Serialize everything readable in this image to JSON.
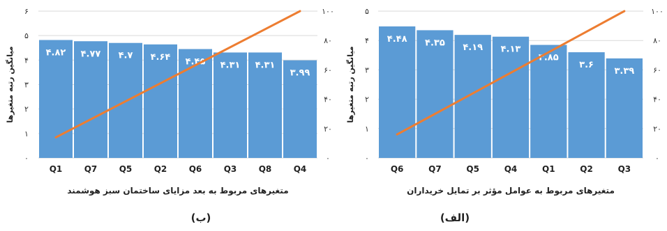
{
  "chart_data": [
    {
      "panel_label": "(ب)",
      "type": "bar",
      "categories": [
        "Q1",
        "Q7",
        "Q5",
        "Q2",
        "Q6",
        "Q3",
        "Q8",
        "Q4"
      ],
      "values": [
        4.82,
        4.77,
        4.7,
        4.64,
        4.45,
        4.31,
        4.31,
        3.99
      ],
      "value_labels": [
        "۴.۸۲",
        "۴.۷۷",
        "۴.۷",
        "۴.۶۴",
        "۴.۴۵",
        "۴.۳۱",
        "۴.۳۱",
        "۳.۹۹"
      ],
      "ylim": [
        0,
        6
      ],
      "y_ticks": [
        0,
        1,
        2,
        3,
        4,
        5,
        6
      ],
      "y_tick_labels": [
        "۰",
        "۱",
        "۲",
        "۳",
        "۴",
        "۵",
        "۶"
      ],
      "y2lim": [
        0,
        100
      ],
      "y2_ticks": [
        0,
        20,
        40,
        60,
        80,
        100
      ],
      "y2_tick_labels": [
        "۰",
        "۲۰",
        "۴۰",
        "۶۰",
        "۸۰",
        "۱۰۰"
      ],
      "line": [
        14,
        100
      ],
      "xlabel": "متغیرهای مربوط به بعد مزایای ساختمان سبز هوشمند",
      "ylabel": "میانگین رتبه متغیرها",
      "bar_color": "#5b9bd5",
      "line_color": "#ed7d31"
    },
    {
      "panel_label": "(الف)",
      "type": "bar",
      "categories": [
        "Q6",
        "Q7",
        "Q5",
        "Q4",
        "Q1",
        "Q2",
        "Q3"
      ],
      "values": [
        4.48,
        4.35,
        4.19,
        4.13,
        3.85,
        3.6,
        3.39
      ],
      "value_labels": [
        "۴.۴۸",
        "۴.۳۵",
        "۴.۱۹",
        "۴.۱۳",
        "۳.۸۵",
        "۳.۶",
        "۳.۳۹"
      ],
      "ylim": [
        0,
        5
      ],
      "y_ticks": [
        0,
        1,
        2,
        3,
        4,
        5
      ],
      "y_tick_labels": [
        "۰",
        "۱",
        "۲",
        "۳",
        "۴",
        "۵"
      ],
      "y2lim": [
        0,
        100
      ],
      "y2_ticks": [
        0,
        20,
        40,
        60,
        80,
        100
      ],
      "y2_tick_labels": [
        "۰",
        "۲۰",
        "۴۰",
        "۶۰",
        "۸۰",
        "۱۰۰"
      ],
      "line": [
        16,
        100
      ],
      "xlabel": "متغیرهای مربوط به عوامل مؤثر بر تمایل خریداران",
      "ylabel": "میانگین رتبه متغیرها",
      "bar_color": "#5b9bd5",
      "line_color": "#ed7d31"
    }
  ]
}
